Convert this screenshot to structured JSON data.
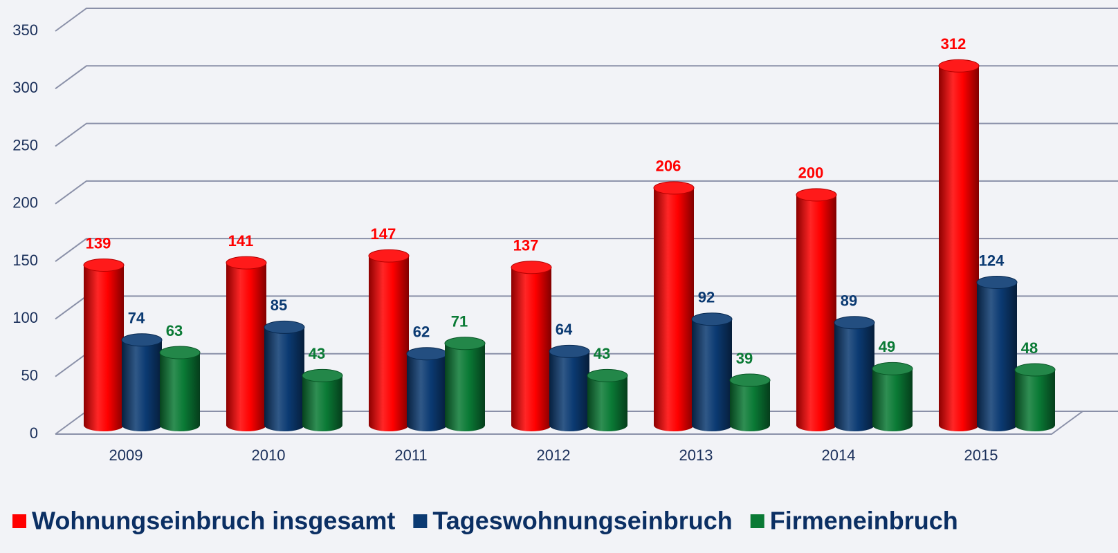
{
  "chart_data": {
    "type": "bar",
    "categories": [
      "2009",
      "2010",
      "2011",
      "2012",
      "2013",
      "2014",
      "2015"
    ],
    "series": [
      {
        "name": "Wohnungseinbruch insgesamt",
        "color": "#ff0000",
        "values": [
          139,
          141,
          147,
          137,
          206,
          200,
          312
        ]
      },
      {
        "name": "Tageswohnungseinbruch",
        "color": "#0b3a72",
        "values": [
          74,
          85,
          62,
          64,
          92,
          89,
          124
        ]
      },
      {
        "name": "Firmeneinbruch",
        "color": "#0a7a35",
        "values": [
          63,
          43,
          71,
          43,
          39,
          49,
          48
        ]
      }
    ],
    "ylim": [
      0,
      350
    ],
    "yticks": [
      0,
      50,
      100,
      150,
      200,
      250,
      300,
      350
    ],
    "grid": true,
    "legend": "bottom"
  }
}
